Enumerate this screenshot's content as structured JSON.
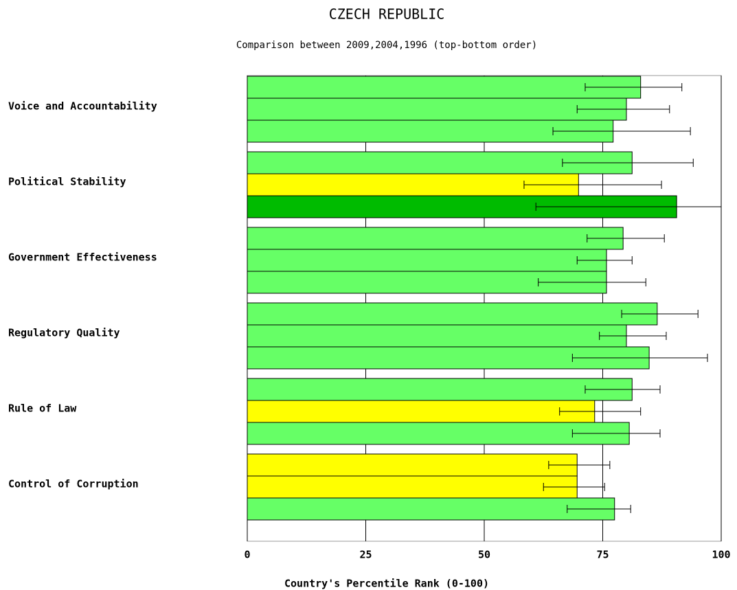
{
  "chart_data": {
    "type": "bar",
    "orientation": "horizontal",
    "title": "CZECH REPUBLIC",
    "subtitle": "Comparison between 2009,2004,1996 (top-bottom order)",
    "x_label": "Country's Percentile Rank (0-100)",
    "categories": [
      "Voice and Accountability",
      "Political Stability",
      "Government Effectiveness",
      "Regulatory Quality",
      "Rule of Law",
      "Control of Corruption"
    ],
    "series": [
      {
        "values": [
          83.0,
          81.2,
          79.3,
          86.5,
          81.2,
          69.6
        ],
        "lower": [
          71.3,
          66.5,
          71.7,
          79.0,
          71.3,
          63.6
        ],
        "upper": [
          91.7,
          94.1,
          88.0,
          95.1,
          87.1,
          76.5
        ],
        "colors": [
          "#66ff66",
          "#66ff66",
          "#66ff66",
          "#66ff66",
          "#66ff66",
          "#ffff00"
        ]
      },
      {
        "values": [
          80.0,
          69.9,
          75.8,
          80.0,
          73.3,
          69.6
        ],
        "lower": [
          69.6,
          58.4,
          69.6,
          74.3,
          65.9,
          62.5
        ],
        "upper": [
          89.1,
          87.4,
          81.2,
          88.4,
          83.0,
          75.4
        ],
        "colors": [
          "#66ff66",
          "#ffff00",
          "#66ff66",
          "#66ff66",
          "#ffff00",
          "#ffff00"
        ]
      },
      {
        "values": [
          77.2,
          90.6,
          75.8,
          84.8,
          80.6,
          77.5
        ],
        "lower": [
          64.5,
          60.9,
          61.4,
          68.6,
          68.6,
          67.5
        ],
        "upper": [
          93.5,
          100,
          84.1,
          97.1,
          87.1,
          80.9
        ],
        "colors": [
          "#66ff66",
          "#00bb00",
          "#66ff66",
          "#66ff66",
          "#66ff66",
          "#66ff66"
        ]
      }
    ],
    "xlim": [
      0,
      100
    ],
    "xticks": [
      0,
      25,
      50,
      75,
      100
    ],
    "grid": true
  }
}
